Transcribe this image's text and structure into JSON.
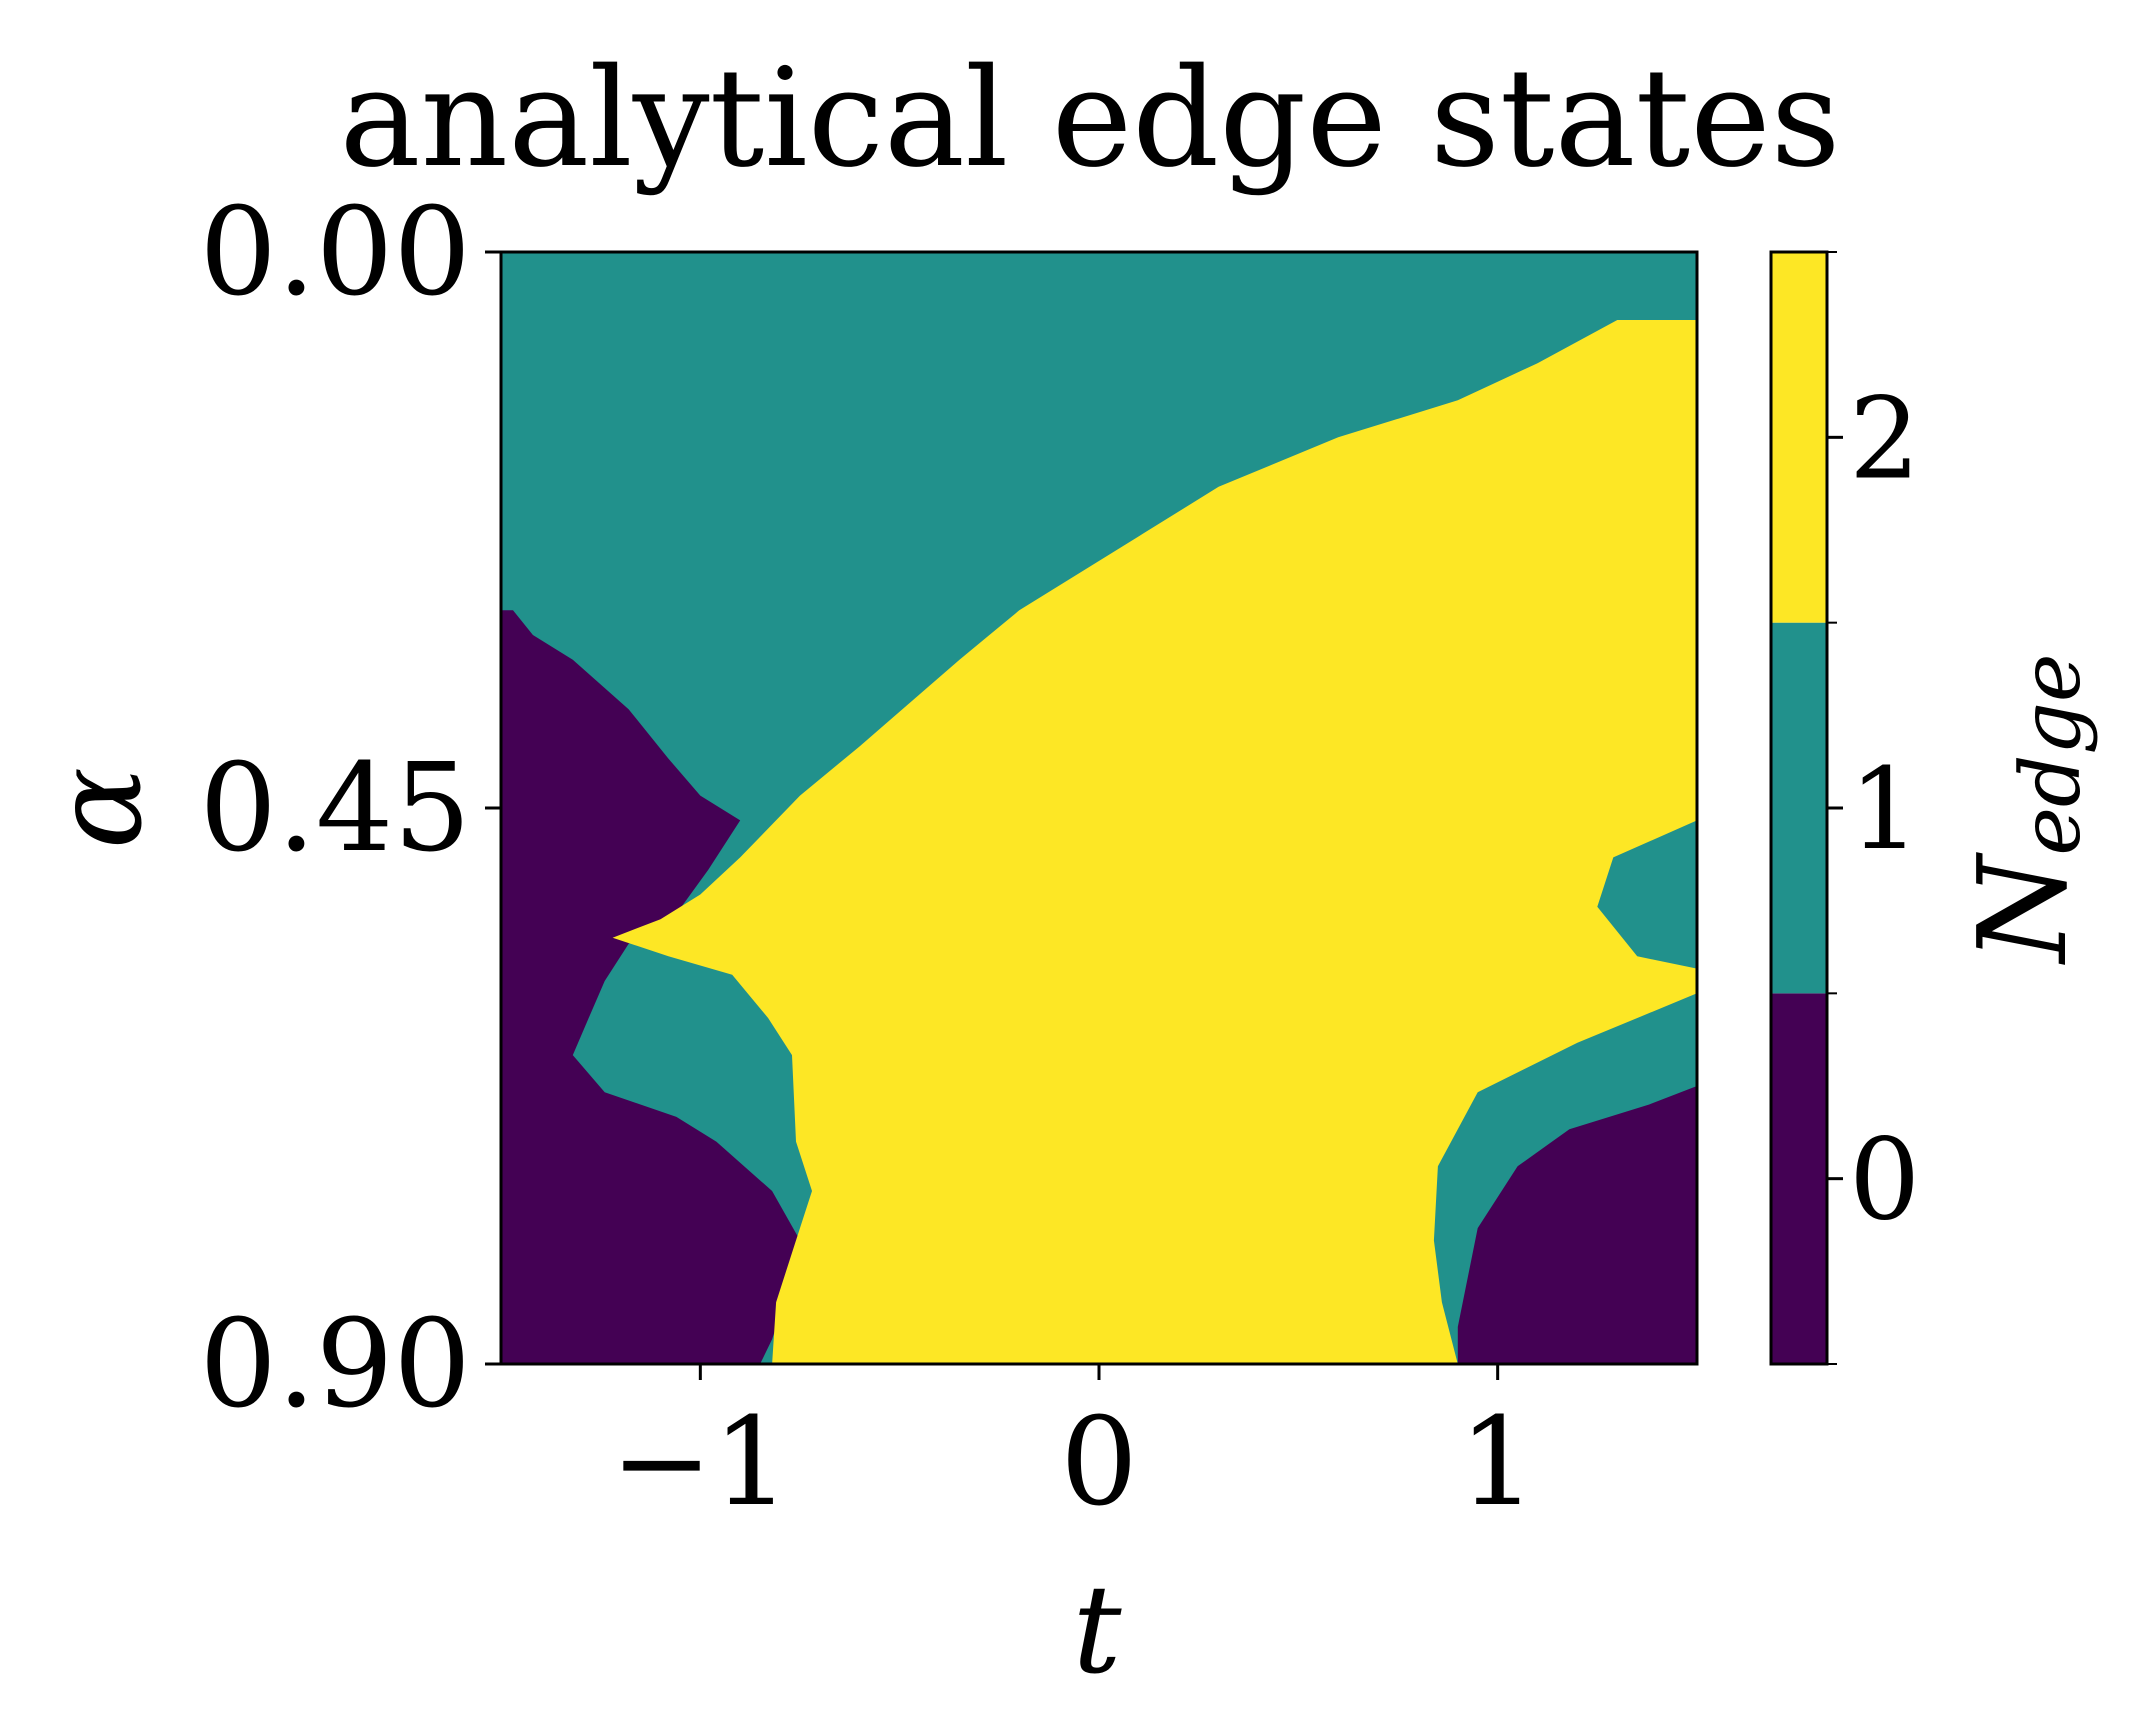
{
  "chart_data": {
    "type": "heatmap",
    "title": "analytical edge states",
    "xlabel": "t",
    "ylabel": "α",
    "colorbar_label": "N",
    "colorbar_label_sub": "edge",
    "x_ticks": [
      "−1",
      "0",
      "1"
    ],
    "x_tick_values": [
      -1,
      0,
      1
    ],
    "y_ticks": [
      "0.00",
      "0.45",
      "0.90"
    ],
    "y_tick_values": [
      0.0,
      0.45,
      0.9
    ],
    "colorbar_ticks": [
      "0",
      "1",
      "2"
    ],
    "xlim": [
      -1.5,
      1.5
    ],
    "ylim": [
      0.9,
      0.0
    ],
    "levels": [
      0,
      1,
      2
    ],
    "colors": {
      "0": "#440154",
      "1": "#21918c",
      "2": "#fde725"
    },
    "grid": false,
    "regions": [
      {
        "level": 1,
        "polygon": [
          [
            -1.5,
            0.0
          ],
          [
            1.5,
            0.0
          ],
          [
            1.5,
            0.9
          ],
          [
            -1.5,
            0.9
          ]
        ]
      },
      {
        "level": 0,
        "polygon": [
          [
            -1.5,
            0.29
          ],
          [
            -1.47,
            0.29
          ],
          [
            -1.42,
            0.31
          ],
          [
            -1.32,
            0.33
          ],
          [
            -1.18,
            0.37
          ],
          [
            -1.08,
            0.41
          ],
          [
            -1.0,
            0.44
          ],
          [
            -0.9,
            0.46
          ],
          [
            -0.98,
            0.5
          ],
          [
            -1.07,
            0.54
          ],
          [
            -1.18,
            0.56
          ],
          [
            -1.24,
            0.59
          ],
          [
            -1.28,
            0.62
          ],
          [
            -1.32,
            0.65
          ],
          [
            -1.24,
            0.68
          ],
          [
            -1.06,
            0.7
          ],
          [
            -0.96,
            0.72
          ],
          [
            -0.82,
            0.76
          ],
          [
            -0.75,
            0.8
          ],
          [
            -0.75,
            0.83
          ],
          [
            -0.8,
            0.86
          ],
          [
            -0.82,
            0.88
          ],
          [
            -0.85,
            0.9
          ],
          [
            -1.5,
            0.9
          ]
        ]
      },
      {
        "level": 2,
        "polygon": [
          [
            1.5,
            0.055
          ],
          [
            1.3,
            0.055
          ],
          [
            1.1,
            0.09
          ],
          [
            0.9,
            0.12
          ],
          [
            0.6,
            0.15
          ],
          [
            0.3,
            0.19
          ],
          [
            0.1,
            0.23
          ],
          [
            -0.2,
            0.29
          ],
          [
            -0.35,
            0.33
          ],
          [
            -0.6,
            0.4
          ],
          [
            -0.75,
            0.44
          ],
          [
            -0.9,
            0.49
          ],
          [
            -1.0,
            0.52
          ],
          [
            -1.1,
            0.54
          ],
          [
            -1.22,
            0.555
          ],
          [
            -1.08,
            0.57
          ],
          [
            -0.92,
            0.585
          ],
          [
            -0.83,
            0.62
          ],
          [
            -0.77,
            0.65
          ],
          [
            -0.76,
            0.72
          ],
          [
            -0.72,
            0.76
          ],
          [
            -0.76,
            0.8
          ],
          [
            -0.81,
            0.85
          ],
          [
            -0.82,
            0.9
          ],
          [
            0.9,
            0.9
          ],
          [
            0.86,
            0.85
          ],
          [
            0.84,
            0.8
          ],
          [
            0.85,
            0.74
          ],
          [
            0.95,
            0.68
          ],
          [
            1.2,
            0.64
          ],
          [
            1.5,
            0.6
          ],
          [
            1.5,
            0.58
          ],
          [
            1.35,
            0.57
          ],
          [
            1.25,
            0.53
          ],
          [
            1.29,
            0.49
          ],
          [
            1.5,
            0.46
          ]
        ]
      },
      {
        "level": 0,
        "polygon": [
          [
            1.5,
            0.675
          ],
          [
            1.38,
            0.69
          ],
          [
            1.18,
            0.71
          ],
          [
            1.05,
            0.74
          ],
          [
            0.95,
            0.79
          ],
          [
            0.9,
            0.87
          ],
          [
            0.9,
            0.9
          ],
          [
            1.5,
            0.9
          ]
        ]
      }
    ]
  }
}
